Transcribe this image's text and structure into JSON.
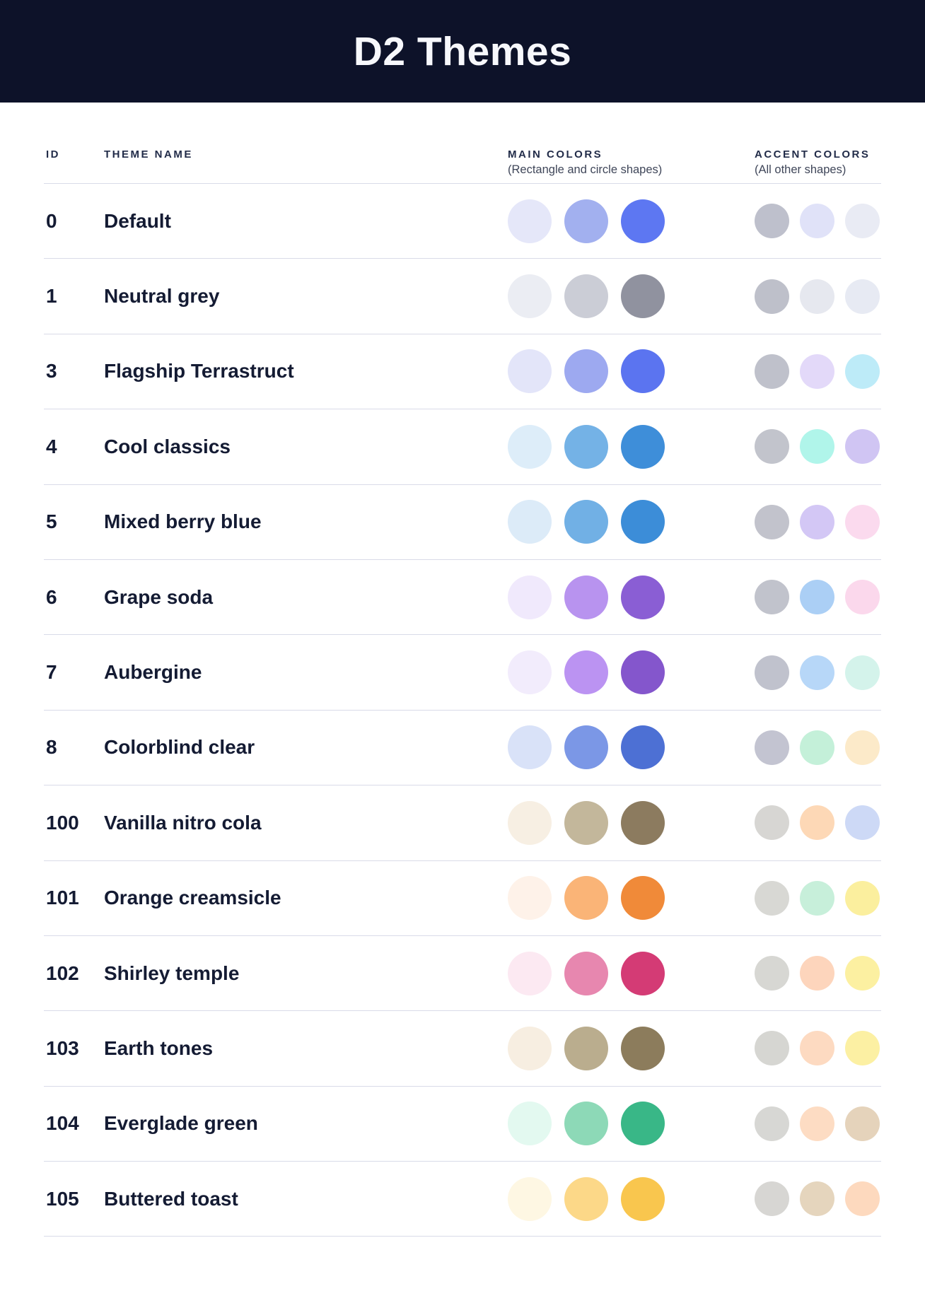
{
  "header": {
    "title": "D2 Themes"
  },
  "columns": {
    "id": "ID",
    "theme_name": "THEME NAME",
    "main": "MAIN COLORS",
    "main_sub": "(Rectangle and circle shapes)",
    "accent": "ACCENT COLORS",
    "accent_sub": "(All other shapes)"
  },
  "colors": {
    "header_bg": "#0d1229",
    "title_text": "#f7f8fc",
    "row_text": "#141b33",
    "column_header_text": "#222c49",
    "column_subtitle_text": "#3f4659",
    "divider": "#d9dbe8"
  },
  "themes": [
    {
      "id": "0",
      "name": "Default",
      "main": [
        "#e5e7f9",
        "#a2b0ef",
        "#5d77f2"
      ],
      "accent": [
        "#bec0cc",
        "#e0e2f8",
        "#e9ebf4"
      ]
    },
    {
      "id": "1",
      "name": "Neutral grey",
      "main": [
        "#ebedf3",
        "#cbcdd6",
        "#90929f"
      ],
      "accent": [
        "#bec0ca",
        "#e6e8ef",
        "#e7eaf3"
      ]
    },
    {
      "id": "3",
      "name": "Flagship Terrastruct",
      "main": [
        "#e3e5f9",
        "#9da9f0",
        "#5b74f0"
      ],
      "accent": [
        "#bfc1cb",
        "#e3d9f9",
        "#bdebf8"
      ]
    },
    {
      "id": "4",
      "name": "Cool classics",
      "main": [
        "#ddedf9",
        "#74b2e6",
        "#3e8ed9"
      ],
      "accent": [
        "#c2c4cc",
        "#b0f5ea",
        "#d0c5f3"
      ]
    },
    {
      "id": "5",
      "name": "Mixed berry blue",
      "main": [
        "#dcebf8",
        "#71b0e5",
        "#3c8dd8"
      ],
      "accent": [
        "#c2c3cc",
        "#d3c7f5",
        "#fbdaee"
      ]
    },
    {
      "id": "6",
      "name": "Grape soda",
      "main": [
        "#f0e9fc",
        "#b893ef",
        "#8a5ed4"
      ],
      "accent": [
        "#c1c3cc",
        "#abcff5",
        "#fbd8ec"
      ]
    },
    {
      "id": "7",
      "name": "Aubergine",
      "main": [
        "#f2ecfc",
        "#bb93f2",
        "#8456cc"
      ],
      "accent": [
        "#c0c2cd",
        "#b7d7f8",
        "#d4f3eb"
      ]
    },
    {
      "id": "8",
      "name": "Colorblind clear",
      "main": [
        "#d9e2f8",
        "#7b97e6",
        "#4d70d4"
      ],
      "accent": [
        "#c3c4d1",
        "#c4f0d9",
        "#fceac9"
      ]
    },
    {
      "id": "100",
      "name": "Vanilla nitro cola",
      "main": [
        "#f7efe3",
        "#c3b79b",
        "#8c7b5f"
      ],
      "accent": [
        "#d7d6d3",
        "#fdd8b6",
        "#cdd9f6"
      ]
    },
    {
      "id": "101",
      "name": "Orange creamsicle",
      "main": [
        "#fef2e9",
        "#fab477",
        "#f08a39"
      ],
      "accent": [
        "#d8d8d4",
        "#c7efda",
        "#fbef9e"
      ]
    },
    {
      "id": "102",
      "name": "Shirley temple",
      "main": [
        "#fce9f2",
        "#e787af",
        "#d43b75"
      ],
      "accent": [
        "#d7d7d3",
        "#fdd5bc",
        "#fcf0a1"
      ]
    },
    {
      "id": "103",
      "name": "Earth tones",
      "main": [
        "#f7eee1",
        "#baad8e",
        "#8c7c5c"
      ],
      "accent": [
        "#d6d6d2",
        "#fddac1",
        "#fcf0a3"
      ]
    },
    {
      "id": "104",
      "name": "Everglade green",
      "main": [
        "#e3f9f0",
        "#8dd9b7",
        "#39b787"
      ],
      "accent": [
        "#d7d7d4",
        "#fddcc3",
        "#e5d3bb"
      ]
    },
    {
      "id": "105",
      "name": "Buttered toast",
      "main": [
        "#fef7e3",
        "#fcd888",
        "#f9c64e"
      ],
      "accent": [
        "#d7d6d3",
        "#e5d5bd",
        "#fdd9be"
      ]
    }
  ]
}
